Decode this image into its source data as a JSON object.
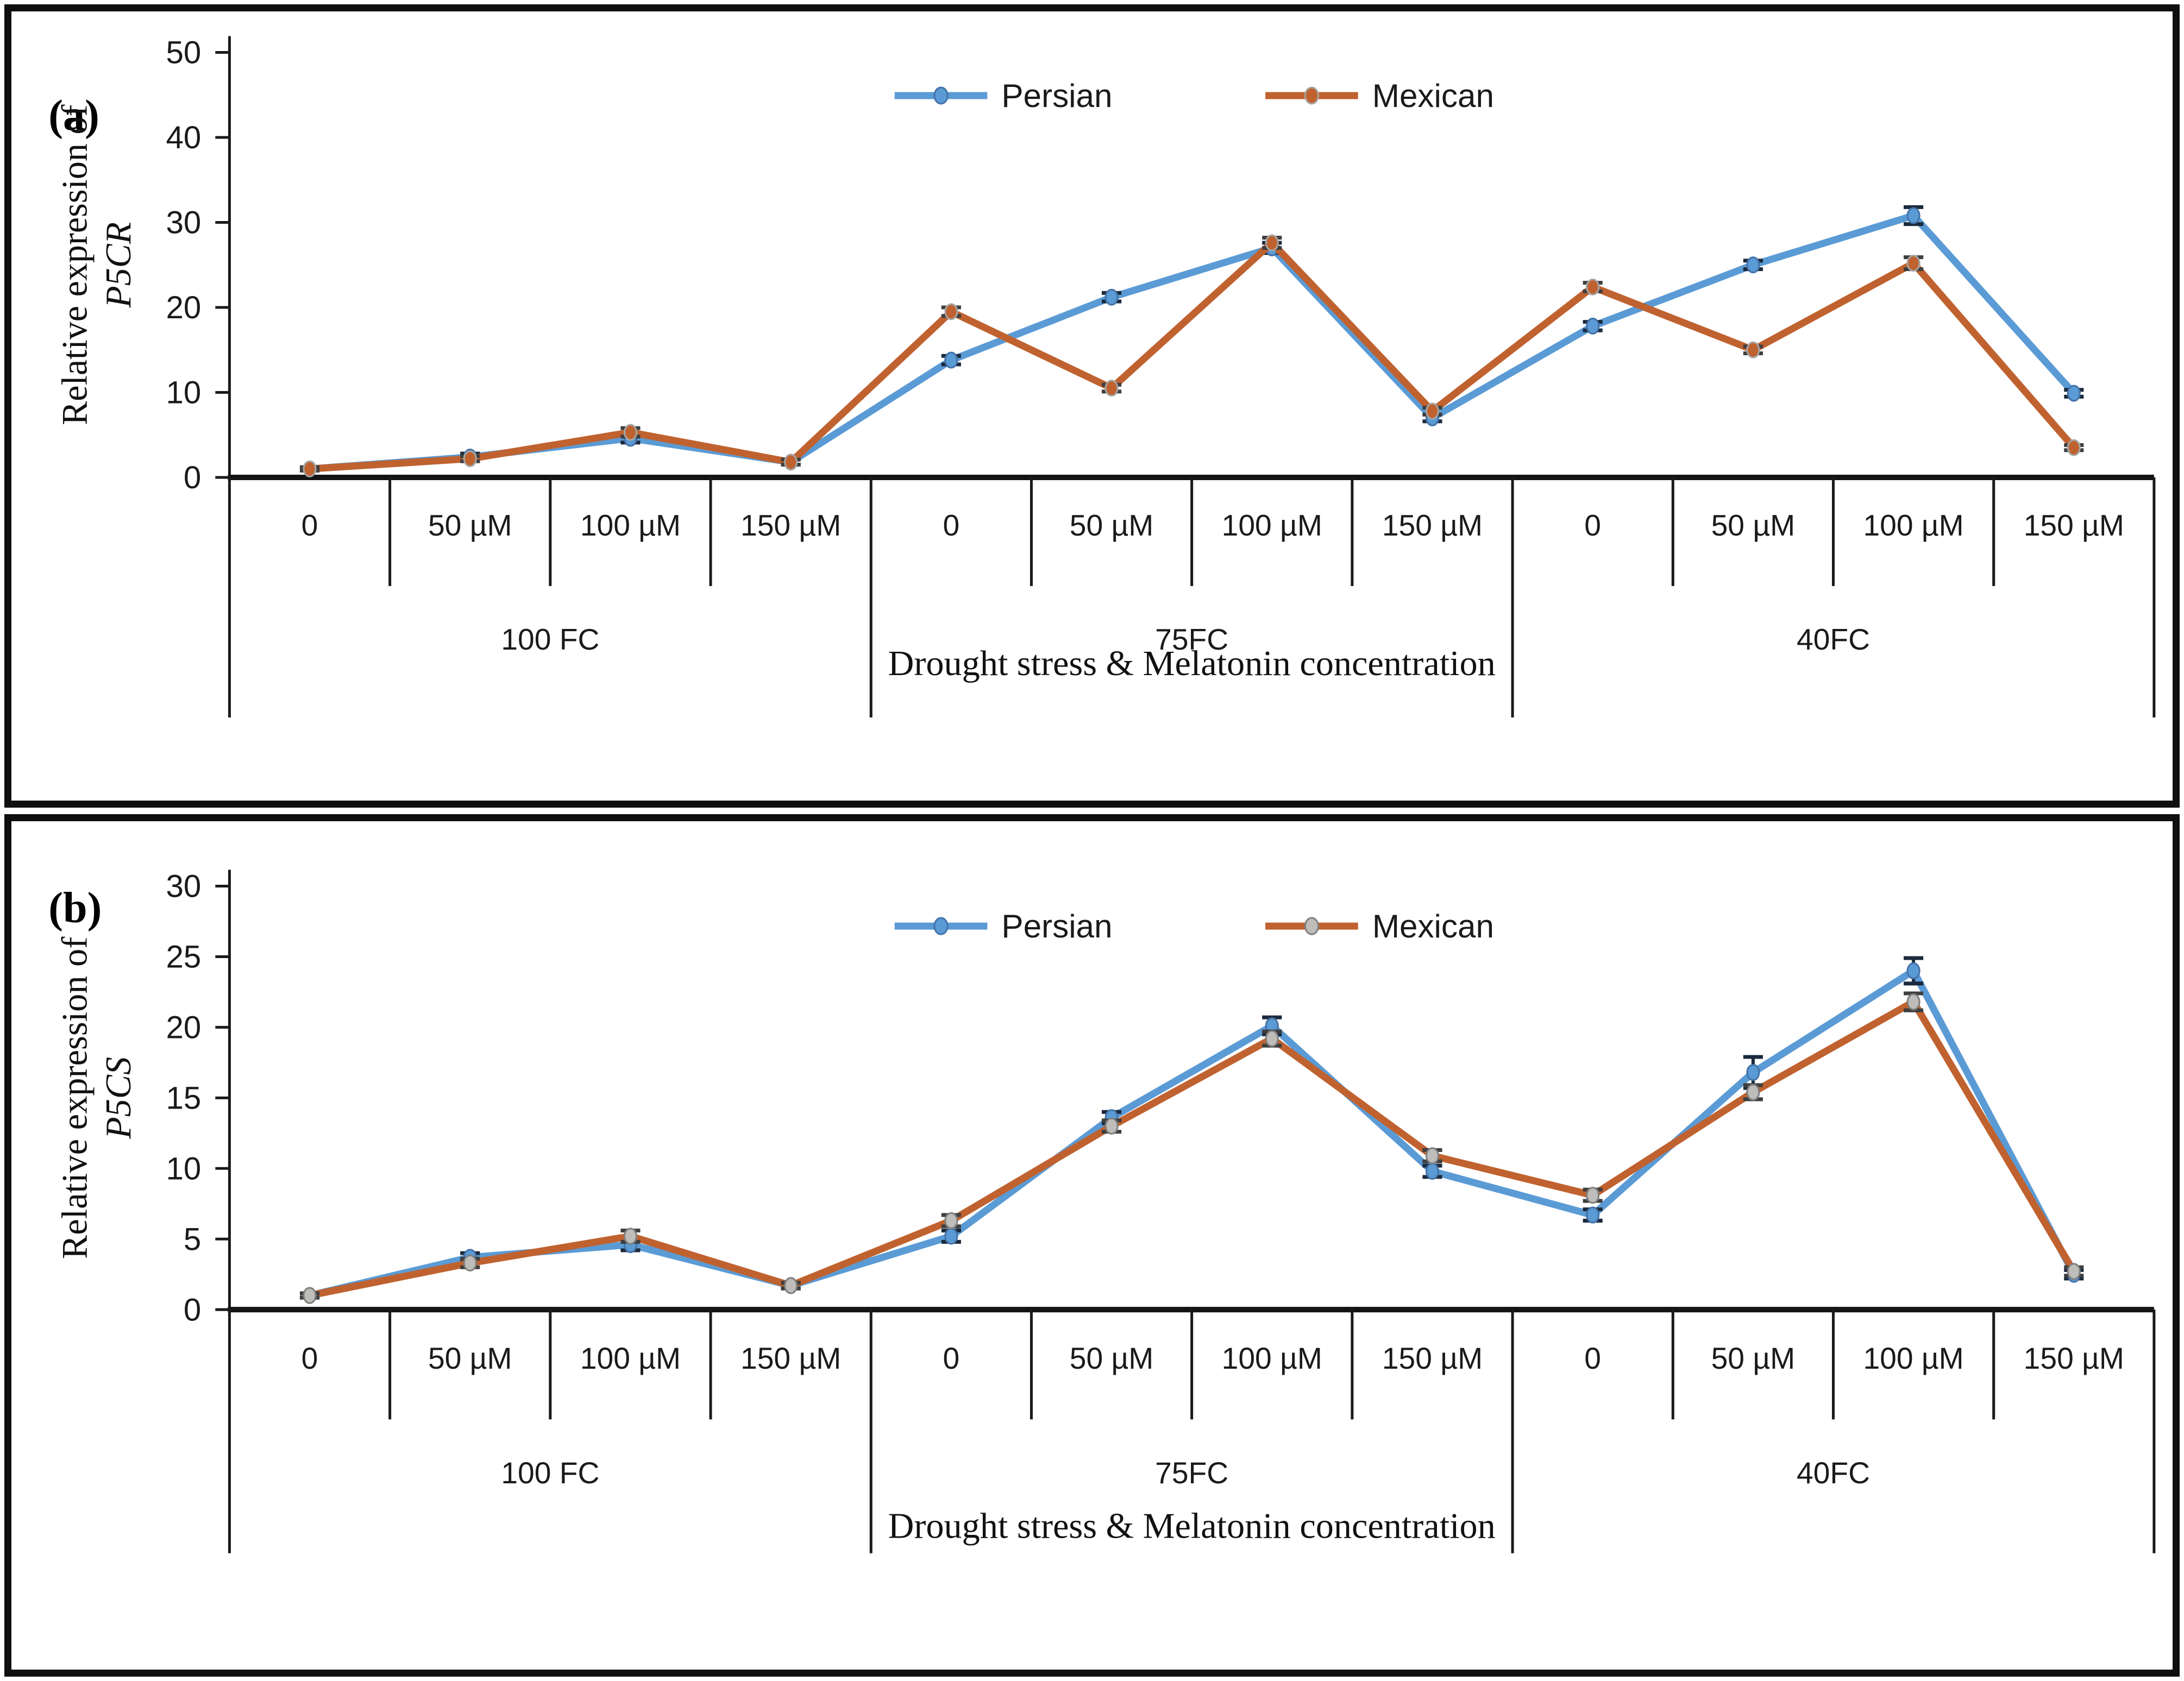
{
  "figure": {
    "background": "#ffffff",
    "border_color": "#0f0f0f"
  },
  "chart_data": [
    {
      "type": "line",
      "panel_label": "(a)",
      "ylabel_prefix": "Relative expression of",
      "gene": "P5CR",
      "xlabel": "Drought stress & Melatonin concentration",
      "ylim": [
        0,
        50
      ],
      "yticks": [
        "0",
        "10",
        "20",
        "30",
        "40",
        "50"
      ],
      "grid": "off",
      "legend_position": "top-center",
      "legend": [
        "Persian",
        "Mexican"
      ],
      "group_labels": [
        "100 FC",
        "75FC",
        "40FC"
      ],
      "categories": [
        "0",
        "50 µM",
        "100 µM",
        "150 µM",
        "0",
        "50 µM",
        "100 µM",
        "150 µM",
        "0",
        "50 µM",
        "100 µM",
        "150 µM"
      ],
      "series": [
        {
          "name": "Persian",
          "line_color": "#5B9BD5",
          "marker_fill": "#5B9BD5",
          "marker_stroke": "#4472A8",
          "error_color": "#1B2A3C",
          "values": [
            1.0,
            2.4,
            4.6,
            1.8,
            13.8,
            21.2,
            27.0,
            7.0,
            17.8,
            25.0,
            30.8,
            9.9
          ],
          "errors": [
            0.2,
            0.4,
            0.5,
            0.3,
            0.5,
            0.5,
            0.6,
            0.4,
            0.5,
            0.5,
            1.0,
            0.4
          ]
        },
        {
          "name": "Mexican",
          "line_color": "#C0622F",
          "marker_fill": "#C0622F",
          "marker_stroke": "#A6A6A6",
          "error_color": "#3F3F3F",
          "values": [
            1.0,
            2.2,
            5.3,
            1.8,
            19.5,
            10.5,
            27.6,
            7.8,
            22.4,
            15.0,
            25.2,
            3.5
          ],
          "errors": [
            0.2,
            0.3,
            0.5,
            0.3,
            0.5,
            0.4,
            0.6,
            0.4,
            0.5,
            0.4,
            0.7,
            0.3
          ]
        }
      ]
    },
    {
      "type": "line",
      "panel_label": "(b)",
      "ylabel_prefix": "Relative expression of",
      "gene": "P5CS",
      "xlabel": "Drought stress & Melatonin concentration",
      "ylim": [
        0,
        30
      ],
      "yticks": [
        "0",
        "5",
        "10",
        "15",
        "20",
        "25",
        "30"
      ],
      "grid": "off",
      "legend_position": "top-center",
      "legend": [
        "Persian",
        "Mexican"
      ],
      "group_labels": [
        "100 FC",
        "75FC",
        "40FC"
      ],
      "categories": [
        "0",
        "50 µM",
        "100 µM",
        "150 µM",
        "0",
        "50 µM",
        "100 µM",
        "150 µM",
        "0",
        "50 µM",
        "100 µM",
        "150 µM"
      ],
      "series": [
        {
          "name": "Persian",
          "line_color": "#5B9BD5",
          "marker_fill": "#5B9BD5",
          "marker_stroke": "#4472A8",
          "error_color": "#1B2A3C",
          "values": [
            1.0,
            3.7,
            4.6,
            1.7,
            5.2,
            13.6,
            20.1,
            9.8,
            6.7,
            16.8,
            24.0,
            2.5
          ],
          "errors": [
            0.15,
            0.3,
            0.4,
            0.2,
            0.4,
            0.4,
            0.6,
            0.4,
            0.4,
            1.1,
            0.9,
            0.3
          ]
        },
        {
          "name": "Mexican",
          "line_color": "#C0622F",
          "marker_fill": "#BFBDBA",
          "marker_stroke": "#7F7F7F",
          "error_color": "#3F3F3F",
          "values": [
            1.0,
            3.3,
            5.2,
            1.7,
            6.3,
            13.0,
            19.2,
            10.9,
            8.1,
            15.4,
            21.8,
            2.7
          ],
          "errors": [
            0.15,
            0.3,
            0.4,
            0.2,
            0.4,
            0.4,
            0.5,
            0.4,
            0.4,
            0.5,
            0.6,
            0.3
          ]
        }
      ]
    }
  ]
}
